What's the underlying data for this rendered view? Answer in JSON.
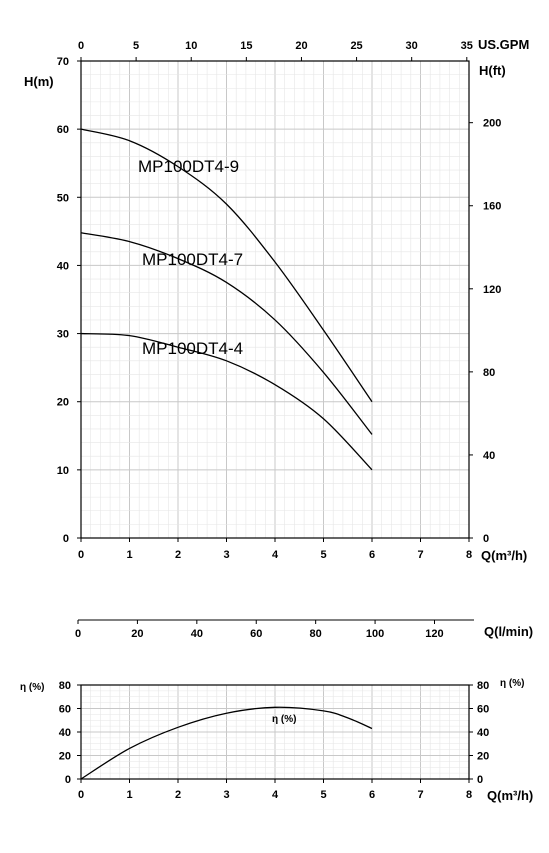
{
  "chart_data": [
    {
      "type": "line",
      "name": "head-curves",
      "xlabel": "Q(m³/h)",
      "ylabel": "H(m)",
      "ylabel_right": "H(ft)",
      "xlabel_top": "US.GPM",
      "xlim": [
        0,
        8
      ],
      "ylim": [
        0,
        70
      ],
      "x_ticks": [
        0,
        1,
        2,
        3,
        4,
        5,
        6,
        7,
        8
      ],
      "y_ticks": [
        0,
        10,
        20,
        30,
        40,
        50,
        60,
        70
      ],
      "top_ticks": [
        0,
        5,
        10,
        15,
        20,
        25,
        30,
        35
      ],
      "top_lim": [
        0,
        35.2
      ],
      "right_ticks": [
        0,
        40,
        80,
        120,
        160,
        200
      ],
      "right_lim": [
        0,
        229.7
      ],
      "grid": true,
      "series": [
        {
          "name": "MP100DT4-9",
          "x": [
            0,
            1,
            2,
            3,
            4,
            5,
            6
          ],
          "values": [
            60,
            58.3,
            54.5,
            49,
            40.5,
            30.5,
            20
          ]
        },
        {
          "name": "MP100DT4-7",
          "x": [
            0,
            1,
            2,
            3,
            4,
            5,
            6
          ],
          "values": [
            44.8,
            43.5,
            41,
            37.5,
            32,
            24.3,
            15.2
          ]
        },
        {
          "name": "MP100DT4-4",
          "x": [
            0,
            1,
            2,
            3,
            4,
            5,
            6
          ],
          "values": [
            30,
            29.7,
            28,
            26,
            22.5,
            17.5,
            10
          ]
        }
      ]
    },
    {
      "type": "axis",
      "name": "flow-lpm-axis",
      "xlabel": "Q(l/min)",
      "ticks": [
        0,
        20,
        40,
        60,
        80,
        100,
        120
      ],
      "xlim": [
        0,
        133.3
      ]
    },
    {
      "type": "line",
      "name": "efficiency-curve",
      "xlabel": "Q(m³/h)",
      "ylabel": "η (%)",
      "ylabel_right": "η (%)",
      "xlim": [
        0,
        8
      ],
      "ylim": [
        0,
        80
      ],
      "x_ticks": [
        0,
        1,
        2,
        3,
        4,
        5,
        6,
        7,
        8
      ],
      "y_ticks": [
        0,
        20,
        40,
        60,
        80
      ],
      "grid": true,
      "series": [
        {
          "name": "η (%)",
          "x": [
            0,
            1,
            2,
            3,
            4,
            5,
            5.5,
            6
          ],
          "values": [
            0,
            26,
            44,
            56,
            61,
            58,
            52,
            43
          ]
        }
      ]
    }
  ]
}
